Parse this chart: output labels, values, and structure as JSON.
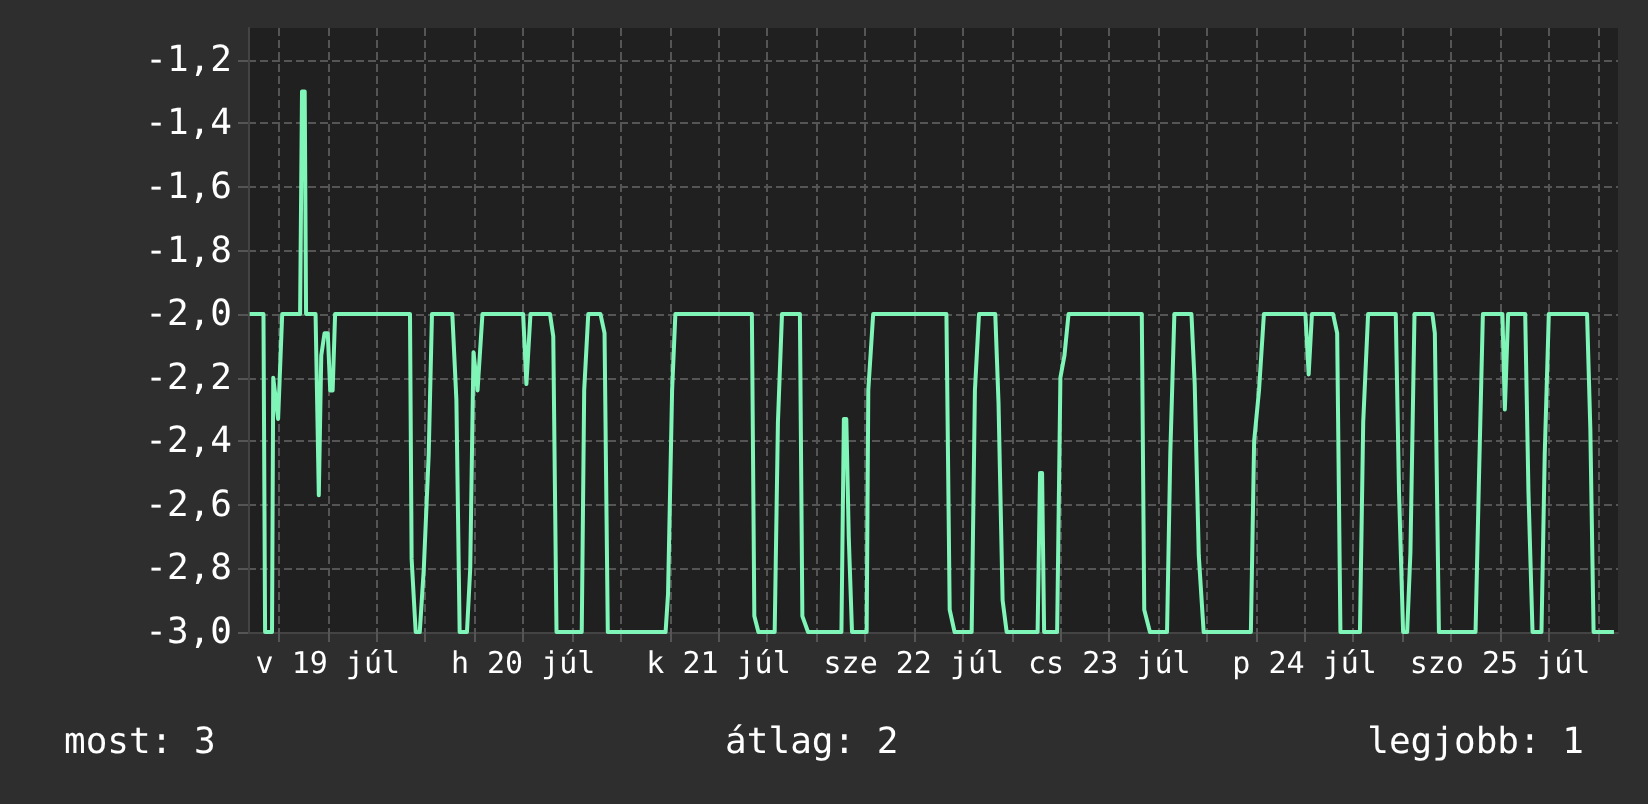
{
  "chart_data": {
    "type": "line",
    "grid": true,
    "marker": "none",
    "line_style": "solid",
    "annotations": [
      "most: 3",
      "átlag: 2",
      "legjobb: 1"
    ],
    "xlim": [
      "--07-19T02:12",
      "--07-26T02:30"
    ],
    "xticks": [
      {
        "value": "--07-19T06:00",
        "label": null
      },
      {
        "value": "--07-19T12:00",
        "label": "v 19 júl"
      },
      {
        "value": "--07-19T18:00",
        "label": null
      },
      {
        "value": "--07-20T00:00",
        "label": null
      },
      {
        "value": "--07-20T06:00",
        "label": null
      },
      {
        "value": "--07-20T12:00",
        "label": "h 20 júl"
      },
      {
        "value": "--07-20T18:00",
        "label": null
      },
      {
        "value": "--07-21T00:00",
        "label": null
      },
      {
        "value": "--07-21T06:00",
        "label": null
      },
      {
        "value": "--07-21T12:00",
        "label": "k 21 júl"
      },
      {
        "value": "--07-21T18:00",
        "label": null
      },
      {
        "value": "--07-22T00:00",
        "label": null
      },
      {
        "value": "--07-22T06:00",
        "label": null
      },
      {
        "value": "--07-22T12:00",
        "label": "sze 22 júl"
      },
      {
        "value": "--07-22T18:00",
        "label": null
      },
      {
        "value": "--07-23T00:00",
        "label": null
      },
      {
        "value": "--07-23T06:00",
        "label": null
      },
      {
        "value": "--07-23T12:00",
        "label": "cs 23 júl"
      },
      {
        "value": "--07-23T18:00",
        "label": null
      },
      {
        "value": "--07-24T00:00",
        "label": null
      },
      {
        "value": "--07-24T06:00",
        "label": null
      },
      {
        "value": "--07-24T12:00",
        "label": "p 24 júl"
      },
      {
        "value": "--07-24T18:00",
        "label": null
      },
      {
        "value": "--07-25T00:00",
        "label": null
      },
      {
        "value": "--07-25T06:00",
        "label": null
      },
      {
        "value": "--07-25T12:00",
        "label": "szo 25 júl"
      },
      {
        "value": "--07-25T18:00",
        "label": null
      },
      {
        "value": "--07-26T00:00",
        "label": null
      }
    ],
    "ylim": [
      -3.0,
      -1.1
    ],
    "yticks": [
      {
        "value": -3.0,
        "label": "-3,0"
      },
      {
        "value": -2.8,
        "label": "-2,8"
      },
      {
        "value": -2.6,
        "label": "-2,6"
      },
      {
        "value": -2.4,
        "label": "-2,4"
      },
      {
        "value": -2.2,
        "label": "-2,2"
      },
      {
        "value": -2.0,
        "label": "-2,0"
      },
      {
        "value": -1.8,
        "label": "-1,8"
      },
      {
        "value": -1.6,
        "label": "-1,6"
      },
      {
        "value": -1.4,
        "label": "-1,4"
      },
      {
        "value": -1.2,
        "label": "-1,2"
      }
    ],
    "series": [
      {
        "color": "#80f5b8",
        "x": [
          "--07-19T02:24",
          "--07-19T04:06",
          "--07-19T04:18",
          "--07-19T05:09",
          "--07-19T05:18",
          "--07-19T05:54",
          "--07-19T06:00",
          "--07-19T06:24",
          "--07-19T08:36",
          "--07-19T08:50",
          "--07-19T09:10",
          "--07-19T09:20",
          "--07-19T10:30",
          "--07-19T10:54",
          "--07-19T11:12",
          "--07-19T11:36",
          "--07-19T12:00",
          "--07-19T12:18",
          "--07-19T12:36",
          "--07-19T12:54",
          "--07-19T22:06",
          "--07-19T22:18",
          "--07-19T22:48",
          "--07-19T23:18",
          "--07-19T23:48",
          "--07-20T00:24",
          "--07-20T00:48",
          "--07-20T03:18",
          "--07-20T03:48",
          "--07-20T04:12",
          "--07-20T05:06",
          "--07-20T05:30",
          "--07-20T05:54",
          "--07-20T06:24",
          "--07-20T07:00",
          "--07-20T12:00",
          "--07-20T12:24",
          "--07-20T12:54",
          "--07-20T15:18",
          "--07-20T15:42",
          "--07-20T16:06",
          "--07-20T19:12",
          "--07-20T19:30",
          "--07-20T20:00",
          "--07-20T21:30",
          "--07-20T22:00",
          "--07-20T22:24",
          "--07-21T05:30",
          "--07-21T05:48",
          "--07-21T06:18",
          "--07-21T06:42",
          "--07-21T16:06",
          "--07-21T16:24",
          "--07-21T16:54",
          "--07-21T18:54",
          "--07-21T19:18",
          "--07-21T19:48",
          "--07-21T22:00",
          "--07-21T22:18",
          "--07-21T23:00",
          "--07-22T03:06",
          "--07-22T03:24",
          "--07-22T03:42",
          "--07-22T04:00",
          "--07-22T04:24",
          "--07-22T06:12",
          "--07-22T06:24",
          "--07-22T07:00",
          "--07-22T16:00",
          "--07-22T16:24",
          "--07-22T17:00",
          "--07-22T19:06",
          "--07-22T19:30",
          "--07-22T20:00",
          "--07-22T22:00",
          "--07-22T22:24",
          "--07-22T22:54",
          "--07-22T23:24",
          "--07-23T03:12",
          "--07-23T03:30",
          "--07-23T03:45",
          "--07-23T04:00",
          "--07-23T05:36",
          "--07-23T06:00",
          "--07-23T06:30",
          "--07-23T07:00",
          "--07-23T16:00",
          "--07-23T16:18",
          "--07-23T17:00",
          "--07-23T19:06",
          "--07-23T19:30",
          "--07-23T20:00",
          "--07-23T22:06",
          "--07-23T22:30",
          "--07-23T23:00",
          "--07-23T23:36",
          "--07-24T05:24",
          "--07-24T05:48",
          "--07-24T06:24",
          "--07-24T07:00",
          "--07-24T12:06",
          "--07-24T12:30",
          "--07-24T12:54",
          "--07-24T15:30",
          "--07-24T16:00",
          "--07-24T16:24",
          "--07-24T18:48",
          "--07-24T19:12",
          "--07-24T19:48",
          "--07-24T23:12",
          "--07-24T23:36",
          "--07-25T00:06",
          "--07-25T00:36",
          "--07-25T01:00",
          "--07-25T01:30",
          "--07-25T03:42",
          "--07-25T04:00",
          "--07-25T04:30",
          "--07-25T09:00",
          "--07-25T09:24",
          "--07-25T09:54",
          "--07-25T12:18",
          "--07-25T12:36",
          "--07-25T13:00",
          "--07-25T15:06",
          "--07-25T15:30",
          "--07-25T16:00",
          "--07-25T17:06",
          "--07-25T17:30",
          "--07-25T18:00",
          "--07-25T22:42",
          "--07-25T23:06",
          "--07-25T23:30",
          "--07-26T02:00"
        ],
        "values": [
          -2.0,
          -2.0,
          -3.0,
          -3.0,
          -2.2,
          -2.33,
          -2.33,
          -2.0,
          -2.0,
          -1.3,
          -1.3,
          -2.0,
          -2.0,
          -2.57,
          -2.13,
          -2.06,
          -2.06,
          -2.24,
          -2.24,
          -2.0,
          -2.0,
          -2.77,
          -3.0,
          -3.0,
          -2.8,
          -2.44,
          -2.0,
          -2.0,
          -2.27,
          -3.0,
          -3.0,
          -2.8,
          -2.12,
          -2.24,
          -2.0,
          -2.0,
          -2.22,
          -2.0,
          -2.0,
          -2.07,
          -3.0,
          -3.0,
          -2.24,
          -2.0,
          -2.0,
          -2.06,
          -3.0,
          -3.0,
          -2.88,
          -2.24,
          -2.0,
          -2.0,
          -2.95,
          -3.0,
          -3.0,
          -2.34,
          -2.0,
          -2.0,
          -2.95,
          -3.0,
          -3.0,
          -2.33,
          -2.33,
          -2.7,
          -3.0,
          -3.0,
          -2.24,
          -2.0,
          -2.0,
          -2.93,
          -3.0,
          -3.0,
          -2.24,
          -2.0,
          -2.0,
          -2.28,
          -2.9,
          -3.0,
          -3.0,
          -2.5,
          -2.5,
          -3.0,
          -3.0,
          -2.2,
          -2.13,
          -2.0,
          -2.0,
          -2.93,
          -3.0,
          -3.0,
          -2.44,
          -2.0,
          -2.0,
          -2.22,
          -2.76,
          -3.0,
          -3.0,
          -2.4,
          -2.24,
          -2.0,
          -2.0,
          -2.19,
          -2.0,
          -2.0,
          -2.06,
          -3.0,
          -3.0,
          -2.34,
          -2.0,
          -2.0,
          -2.56,
          -3.0,
          -3.0,
          -2.75,
          -2.0,
          -2.0,
          -2.06,
          -3.0,
          -3.0,
          -2.54,
          -2.0,
          -2.0,
          -2.3,
          -2.0,
          -2.0,
          -2.56,
          -3.0,
          -3.0,
          -2.44,
          -2.0,
          -2.0,
          -2.36,
          -3.0,
          -3.0
        ]
      }
    ]
  }
}
